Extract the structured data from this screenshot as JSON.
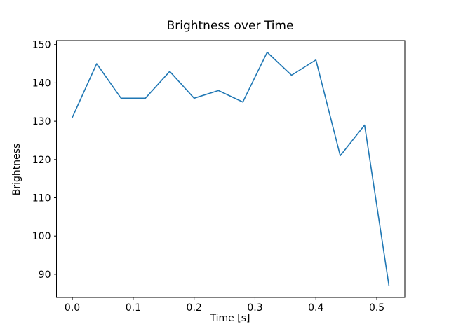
{
  "chart_data": {
    "type": "line",
    "title": "Brightness over Time",
    "xlabel": "Time [s]",
    "ylabel": "Brightness",
    "x": [
      0.0,
      0.04,
      0.08,
      0.12,
      0.16,
      0.2,
      0.24,
      0.28,
      0.32,
      0.36,
      0.4,
      0.44,
      0.48,
      0.52
    ],
    "y": [
      131,
      145,
      136,
      136,
      143,
      136,
      138,
      135,
      148,
      142,
      146,
      121,
      129,
      87
    ],
    "xlim": [
      -0.026,
      0.546
    ],
    "ylim": [
      83.95,
      151.05
    ],
    "xticks": [
      0.0,
      0.1,
      0.2,
      0.3,
      0.4,
      0.5
    ],
    "xticklabels": [
      "0.0",
      "0.1",
      "0.2",
      "0.3",
      "0.4",
      "0.5"
    ],
    "yticks": [
      90,
      100,
      110,
      120,
      130,
      140,
      150
    ],
    "yticklabels": [
      "90",
      "100",
      "110",
      "120",
      "130",
      "140",
      "150"
    ],
    "line_color": "#1f77b4",
    "spine_color": "#000000",
    "background_color": "#ffffff",
    "grid": false,
    "legend_position": "none"
  }
}
